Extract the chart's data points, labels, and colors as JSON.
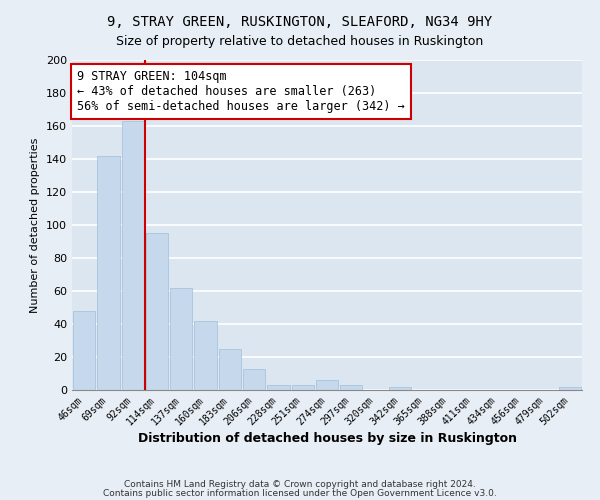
{
  "title": "9, STRAY GREEN, RUSKINGTON, SLEAFORD, NG34 9HY",
  "subtitle": "Size of property relative to detached houses in Ruskington",
  "xlabel": "Distribution of detached houses by size in Ruskington",
  "ylabel": "Number of detached properties",
  "bar_labels": [
    "46sqm",
    "69sqm",
    "92sqm",
    "114sqm",
    "137sqm",
    "160sqm",
    "183sqm",
    "206sqm",
    "228sqm",
    "251sqm",
    "274sqm",
    "297sqm",
    "320sqm",
    "342sqm",
    "365sqm",
    "388sqm",
    "411sqm",
    "434sqm",
    "456sqm",
    "479sqm",
    "502sqm"
  ],
  "bar_values": [
    48,
    142,
    163,
    95,
    62,
    42,
    25,
    13,
    3,
    3,
    6,
    3,
    0,
    2,
    0,
    0,
    0,
    0,
    0,
    0,
    2
  ],
  "bar_color": "#c6d9ec",
  "bar_edge_color": "#a8c4dc",
  "vline_color": "#cc0000",
  "annotation_text": "9 STRAY GREEN: 104sqm\n← 43% of detached houses are smaller (263)\n56% of semi-detached houses are larger (342) →",
  "annotation_box_color": "#ffffff",
  "annotation_box_edge": "#cc0000",
  "annotation_fontsize": 8.5,
  "ylim": [
    0,
    200
  ],
  "yticks": [
    0,
    20,
    40,
    60,
    80,
    100,
    120,
    140,
    160,
    180,
    200
  ],
  "title_fontsize": 10,
  "subtitle_fontsize": 9,
  "xlabel_fontsize": 9,
  "ylabel_fontsize": 8,
  "footer_line1": "Contains HM Land Registry data © Crown copyright and database right 2024.",
  "footer_line2": "Contains public sector information licensed under the Open Government Licence v3.0.",
  "background_color": "#e8eef5",
  "plot_background_color": "#dce6f0",
  "grid_color": "#ffffff",
  "grid_linewidth": 1.2
}
